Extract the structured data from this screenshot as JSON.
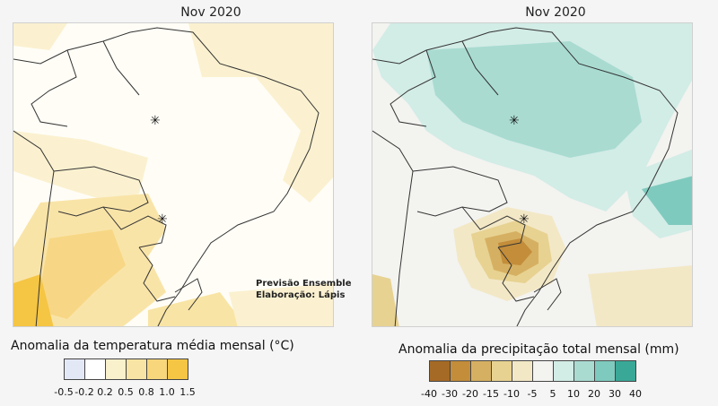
{
  "temperature_panel": {
    "title": "Nov 2020",
    "note_line1": "Previsão Ensemble",
    "note_line2": "Elaboração: Lápis",
    "legend_title": "Anomalia da temperatura média mensal (°C)",
    "legend_ticks": [
      "-0.5",
      "-0.2",
      "0.2",
      "0.5",
      "0.8",
      "1.0",
      "1.5"
    ],
    "legend_colors": [
      "#e3e8f7",
      "#ffffff",
      "#f9f0cc",
      "#f8e4a4",
      "#f7d67c",
      "#f5c544"
    ]
  },
  "precipitation_panel": {
    "title": "Nov 2020",
    "legend_title": "Anomalia da precipitação total mensal (mm)",
    "legend_ticks": [
      "-40",
      "-30",
      "-20",
      "-15",
      "-10",
      "-5",
      "5",
      "10",
      "20",
      "30",
      "40"
    ],
    "legend_colors": [
      "#a56a26",
      "#c38d3a",
      "#d6b062",
      "#e7d291",
      "#f3e8c6",
      "#f3f3f0",
      "#d2ece6",
      "#a9dbd1",
      "#7fcabe",
      "#3aa897"
    ]
  },
  "markers": {
    "symbol": "✳"
  }
}
